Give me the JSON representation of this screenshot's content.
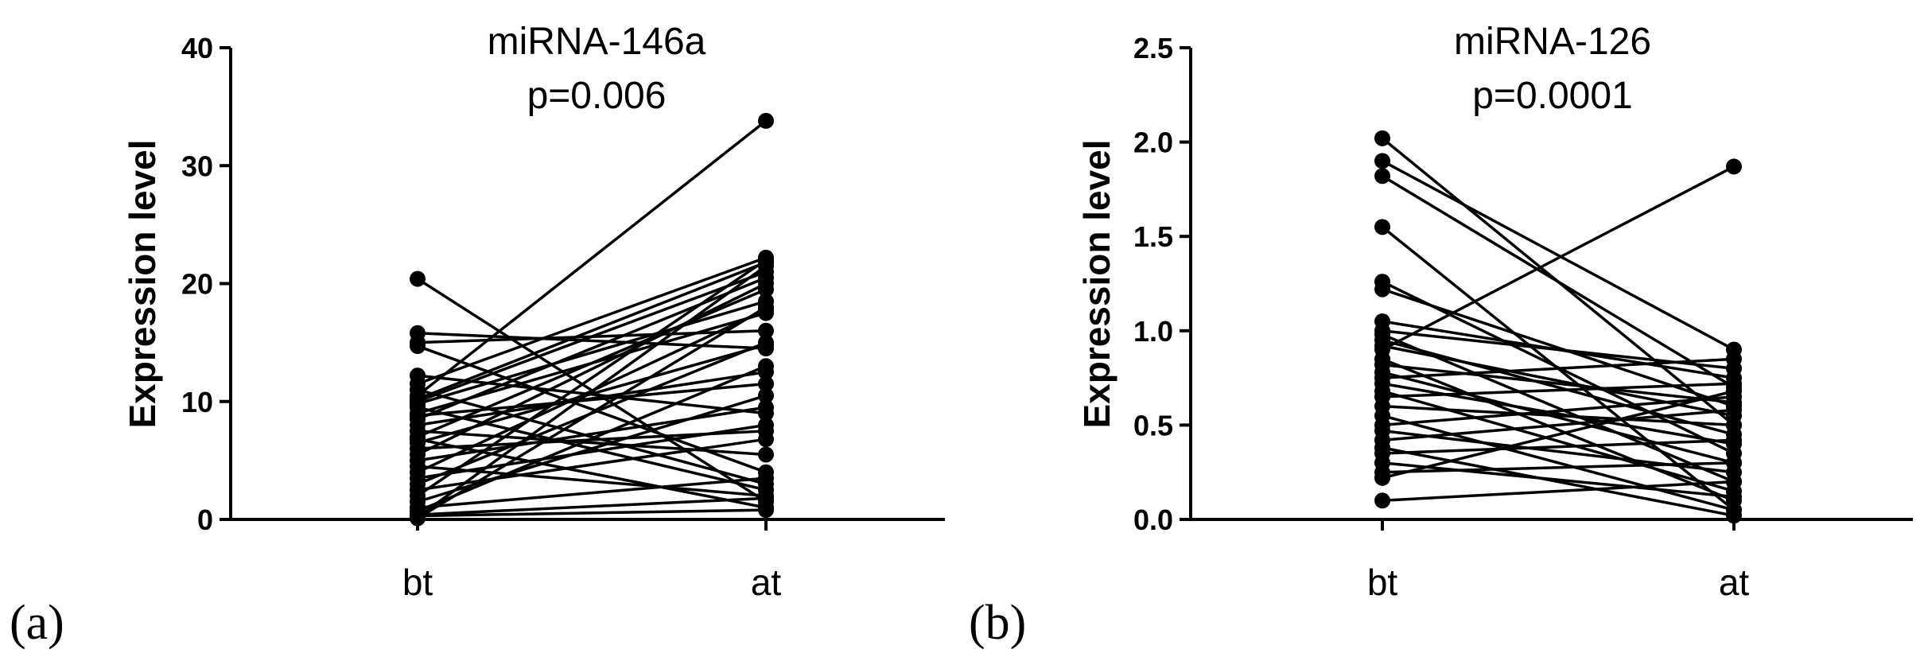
{
  "chart_data": [
    {
      "id": "a",
      "type": "line",
      "style": "paired-points",
      "panel_label": "(a)",
      "title": "miRNA-146a",
      "subtitle": "p=0.006",
      "xlabel": "",
      "ylabel": "Expression level",
      "categories": [
        "bt",
        "at"
      ],
      "ylim": [
        0,
        40
      ],
      "yticks": [
        0,
        10,
        20,
        30,
        40
      ],
      "ytick_labels": [
        "0",
        "10",
        "20",
        "30",
        "40"
      ],
      "pairs": [
        [
          20.4,
          1.5
        ],
        [
          15.8,
          14.5
        ],
        [
          15.0,
          16.0
        ],
        [
          14.7,
          4.0
        ],
        [
          12.2,
          9.0
        ],
        [
          11.5,
          22.2
        ],
        [
          11.0,
          3.0
        ],
        [
          10.5,
          33.8
        ],
        [
          10.2,
          21.8
        ],
        [
          10.0,
          21.0
        ],
        [
          9.8,
          18.5
        ],
        [
          9.5,
          2.5
        ],
        [
          9.0,
          17.5
        ],
        [
          8.8,
          11.5
        ],
        [
          8.5,
          20.5
        ],
        [
          8.0,
          12.5
        ],
        [
          7.5,
          5.5
        ],
        [
          7.0,
          19.5
        ],
        [
          6.8,
          1.0
        ],
        [
          6.5,
          14.8
        ],
        [
          6.0,
          7.5
        ],
        [
          5.5,
          20.0
        ],
        [
          5.0,
          9.5
        ],
        [
          4.5,
          2.0
        ],
        [
          4.0,
          17.8
        ],
        [
          3.5,
          8.0
        ],
        [
          3.0,
          15.0
        ],
        [
          2.5,
          6.8
        ],
        [
          2.0,
          22.0
        ],
        [
          1.5,
          10.5
        ],
        [
          1.0,
          3.5
        ],
        [
          0.7,
          13.0
        ],
        [
          0.4,
          1.8
        ],
        [
          0.2,
          21.5
        ],
        [
          0.1,
          18.0
        ],
        [
          0.3,
          0.8
        ]
      ]
    },
    {
      "id": "b",
      "type": "line",
      "style": "paired-points",
      "panel_label": "(b)",
      "title": "miRNA-126",
      "subtitle": "p=0.0001",
      "xlabel": "",
      "ylabel": "Expression level",
      "categories": [
        "bt",
        "at"
      ],
      "ylim": [
        0,
        2.5
      ],
      "yticks": [
        0,
        0.5,
        1.0,
        1.5,
        2.0,
        2.5
      ],
      "ytick_labels": [
        "0.0",
        "0.5",
        "1.0",
        "1.5",
        "2.0",
        "2.5"
      ],
      "pairs": [
        [
          2.02,
          0.5
        ],
        [
          1.9,
          0.9
        ],
        [
          1.82,
          0.7
        ],
        [
          1.55,
          0.05
        ],
        [
          1.26,
          0.35
        ],
        [
          1.22,
          0.6
        ],
        [
          1.05,
          0.75
        ],
        [
          1.0,
          0.8
        ],
        [
          0.98,
          0.2
        ],
        [
          0.95,
          0.45
        ],
        [
          0.92,
          0.55
        ],
        [
          0.9,
          1.87
        ],
        [
          0.85,
          0.1
        ],
        [
          0.82,
          0.62
        ],
        [
          0.78,
          0.3
        ],
        [
          0.75,
          0.85
        ],
        [
          0.72,
          0.4
        ],
        [
          0.68,
          0.15
        ],
        [
          0.65,
          0.72
        ],
        [
          0.6,
          0.5
        ],
        [
          0.55,
          0.05
        ],
        [
          0.5,
          0.65
        ],
        [
          0.47,
          0.25
        ],
        [
          0.42,
          0.58
        ],
        [
          0.38,
          0.02
        ],
        [
          0.35,
          0.42
        ],
        [
          0.3,
          0.12
        ],
        [
          0.25,
          0.3
        ],
        [
          0.22,
          0.68
        ],
        [
          0.1,
          0.2
        ]
      ]
    }
  ]
}
